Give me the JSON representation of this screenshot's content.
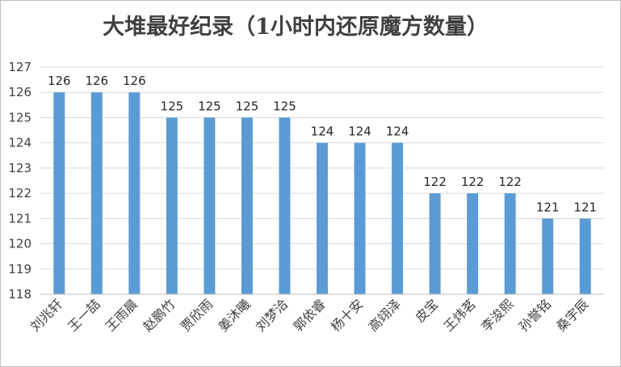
{
  "chart_data": {
    "type": "bar",
    "title": "大堆最好纪录（1小时内还原魔方数量）",
    "xlabel": "",
    "ylabel": "",
    "ylim": [
      118,
      127
    ],
    "yticks": [
      118,
      119,
      120,
      121,
      122,
      123,
      124,
      125,
      126,
      127
    ],
    "grid": true,
    "legend": "none",
    "bar_color": "#5b9bd5",
    "categories": [
      "刘兆轩",
      "王一喆",
      "王雨晨",
      "赵鹏竹",
      "贾欣雨",
      "姜沐曦",
      "刘梦洽",
      "郭依睿",
      "杨十安",
      "高翊泽",
      "皮宝",
      "王炜茗",
      "李浚熙",
      "孙誉铭",
      "桑宇辰"
    ],
    "values": [
      126,
      126,
      126,
      125,
      125,
      125,
      125,
      124,
      124,
      124,
      122,
      122,
      122,
      121,
      121
    ],
    "data_labels": true
  }
}
